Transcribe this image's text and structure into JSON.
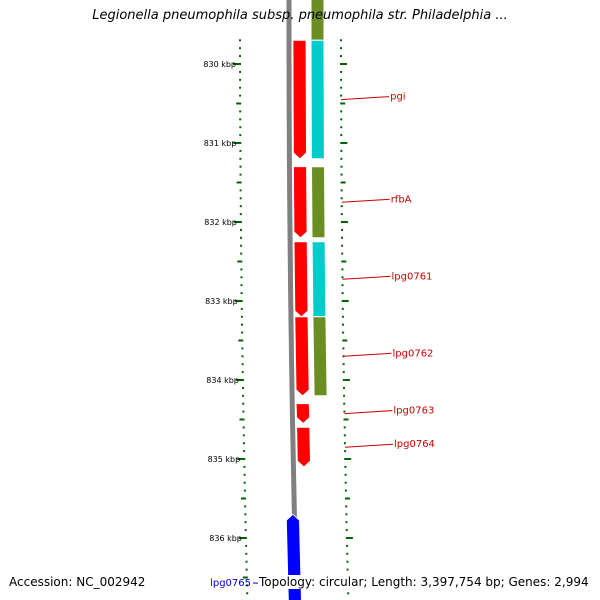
{
  "title": "Legionella pneumophila subsp. pneumophila str. Philadelphia ...",
  "colors": {
    "background": "#ffffff",
    "cds_forward": "#ff0000",
    "cds_reverse": "#0000ff",
    "cog_cyan": "#00cccc",
    "cog_olive": "#6b8e23",
    "tick_green": "#006400",
    "backbone": "#808080",
    "label_red": "#cc0000",
    "label_blue": "#0000cc"
  },
  "ticks": [
    {
      "label": "830 kbp",
      "kbp": 830
    },
    {
      "label": "831 kbp",
      "kbp": 831
    },
    {
      "label": "832 kbp",
      "kbp": 832
    },
    {
      "label": "833 kbp",
      "kbp": 833
    },
    {
      "label": "834 kbp",
      "kbp": 834
    },
    {
      "label": "835 kbp",
      "kbp": 835
    },
    {
      "label": "836 kbp",
      "kbp": 836
    }
  ],
  "genes": [
    {
      "name": "pgi",
      "strand": "+",
      "start_kbp": 829.7,
      "end_kbp": 831.2,
      "label": "pgi",
      "label_color": "#cc0000"
    },
    {
      "name": "rfbA",
      "strand": "+",
      "start_kbp": 831.3,
      "end_kbp": 832.2,
      "label": "rfbA",
      "label_color": "#cc0000"
    },
    {
      "name": "lpg0761",
      "strand": "+",
      "start_kbp": 832.25,
      "end_kbp": 833.2,
      "label": "lpg0761",
      "label_color": "#cc0000"
    },
    {
      "name": "lpg0762",
      "strand": "+",
      "start_kbp": 833.2,
      "end_kbp": 834.2,
      "label": "lpg0762",
      "label_color": "#cc0000"
    },
    {
      "name": "lpg0763",
      "strand": "+",
      "start_kbp": 834.3,
      "end_kbp": 834.55,
      "label": "lpg0763",
      "label_color": "#cc0000"
    },
    {
      "name": "lpg0764",
      "strand": "+",
      "start_kbp": 834.6,
      "end_kbp": 835.1,
      "label": "lpg0764",
      "label_color": "#cc0000"
    },
    {
      "name": "lpg0765",
      "strand": "-",
      "start_kbp": 835.7,
      "end_kbp": 837.0,
      "label": "lpg0765",
      "label_color": "#0000cc"
    }
  ],
  "cog_segments": [
    {
      "color": "#6b8e23",
      "start_kbp": 829.0,
      "end_kbp": 829.7
    },
    {
      "color": "#00cccc",
      "start_kbp": 829.7,
      "end_kbp": 831.2
    },
    {
      "color": "#6b8e23",
      "start_kbp": 831.3,
      "end_kbp": 832.2
    },
    {
      "color": "#00cccc",
      "start_kbp": 832.25,
      "end_kbp": 833.2
    },
    {
      "color": "#6b8e23",
      "start_kbp": 833.2,
      "end_kbp": 834.2
    }
  ],
  "footer": {
    "accession": "Accession: NC_002942",
    "topology": "Topology: circular; Length: 3,397,754 bp; Genes: 2,994"
  }
}
